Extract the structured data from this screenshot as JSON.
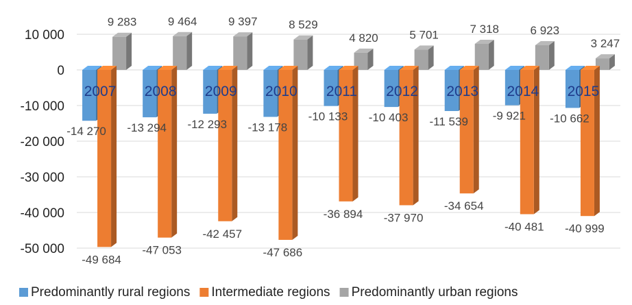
{
  "chart_data": {
    "type": "bar",
    "title": "",
    "xlabel": "",
    "ylabel": "",
    "categories": [
      "2007",
      "2008",
      "2009",
      "2010",
      "2011",
      "2012",
      "2013",
      "2014",
      "2015"
    ],
    "series": [
      {
        "name": "Predominantly rural regions",
        "color": "#5b9bd5",
        "values": [
          -14270,
          -13294,
          -12293,
          -13178,
          -10133,
          -10403,
          -11539,
          -9921,
          -10662
        ],
        "labels": [
          "-14 270",
          "-13 294",
          "-12 293",
          "-13 178",
          "-10 133",
          "-10 403",
          "-11 539",
          "-9 921",
          "-10 662"
        ]
      },
      {
        "name": "Intermediate regions",
        "color": "#ed7d31",
        "values": [
          -49684,
          -47053,
          -42457,
          -47686,
          -36894,
          -37970,
          -34654,
          -40481,
          -40999
        ],
        "labels": [
          "-49 684",
          "-47 053",
          "-42 457",
          "-47 686",
          "-36 894",
          "-37 970",
          "-34 654",
          "-40 481",
          "-40 999"
        ]
      },
      {
        "name": "Predominantly urban regions",
        "color": "#a5a5a5",
        "values": [
          9283,
          9464,
          9397,
          8529,
          4820,
          5701,
          7318,
          6923,
          3247
        ],
        "labels": [
          "9 283",
          "9 464",
          "9 397",
          "8 529",
          "4 820",
          "5 701",
          "7 318",
          "6 923",
          "3 247"
        ]
      }
    ],
    "yticks": [
      10000,
      0,
      -10000,
      -20000,
      -30000,
      -40000,
      -50000
    ],
    "ytick_labels": [
      "10 000",
      "0",
      "-10 000",
      "-20 000",
      "-30 000",
      "-40 000",
      "-50 000"
    ],
    "ylim": [
      -50000,
      10000
    ],
    "grid": true,
    "bar_style": "3d",
    "legend_position": "bottom"
  }
}
